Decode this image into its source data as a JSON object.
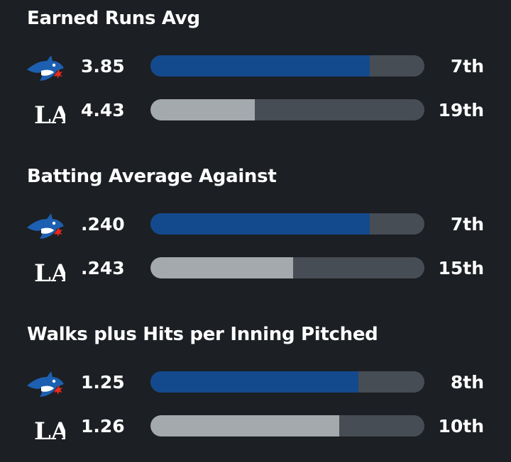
{
  "colors": {
    "background": "#1c1f23",
    "team1_fill": "#134a8e",
    "team2_fill": "#a3a9ad",
    "track": "#474d54",
    "team1_logo_blue": "#1d5fb0",
    "team1_logo_red": "#e8291c"
  },
  "teams": [
    {
      "icon": "blue-jays-logo-icon"
    },
    {
      "icon": "dodgers-la-logo-icon",
      "logo_text": "LA"
    }
  ],
  "stats": [
    {
      "title": "Earned Runs Avg",
      "rows": [
        {
          "value": "3.85",
          "rank": "7th",
          "fill_pct": 80
        },
        {
          "value": "4.43",
          "rank": "19th",
          "fill_pct": 38
        }
      ]
    },
    {
      "title": "Batting Average Against",
      "rows": [
        {
          "value": ".240",
          "rank": "7th",
          "fill_pct": 80
        },
        {
          "value": ".243",
          "rank": "15th",
          "fill_pct": 52
        }
      ]
    },
    {
      "title": "Walks plus Hits per Inning Pitched",
      "rows": [
        {
          "value": "1.25",
          "rank": "8th",
          "fill_pct": 76
        },
        {
          "value": "1.26",
          "rank": "10th",
          "fill_pct": 69
        }
      ]
    }
  ]
}
